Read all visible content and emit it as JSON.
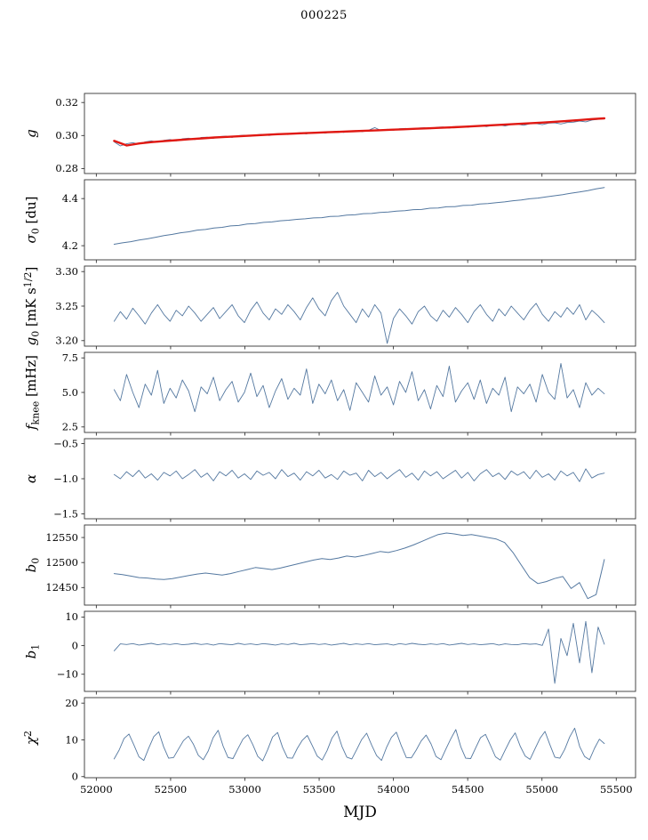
{
  "chart_data": {
    "type": "line",
    "title": "000225",
    "xlabel": "MJD",
    "axis_color": "#333333",
    "xlim": [
      51920,
      55630
    ],
    "x_ticks": [
      52000,
      52500,
      53000,
      53500,
      54000,
      54500,
      55000,
      55500
    ],
    "x_tick_labels": [
      "52000",
      "52500",
      "53000",
      "53500",
      "54000",
      "54500",
      "55000",
      "55500"
    ],
    "panels": [
      {
        "name": "g",
        "ylabel_parts": [
          {
            "t": "g",
            "it": true
          }
        ],
        "ylim": [
          0.277,
          0.3255
        ],
        "yticks": [
          0.28,
          0.3,
          0.32
        ],
        "ytick_labels": [
          "0.28",
          "0.30",
          "0.32"
        ],
        "series": [
          {
            "name": "g-noisy",
            "color": "#5478a0",
            "width": 0.9,
            "x_start": 52120,
            "x_end": 55420,
            "values": [
              0.2962,
              0.2937,
              0.295,
              0.2957,
              0.2948,
              0.2962,
              0.2968,
              0.296,
              0.2971,
              0.2976,
              0.2968,
              0.298,
              0.2984,
              0.2976,
              0.2988,
              0.299,
              0.2983,
              0.2994,
              0.2996,
              0.2989,
              0.2999,
              0.3002,
              0.2995,
              0.3005,
              0.3007,
              0.3,
              0.301,
              0.3012,
              0.3006,
              0.3014,
              0.3017,
              0.301,
              0.3019,
              0.3021,
              0.3014,
              0.3023,
              0.3026,
              0.3019,
              0.3028,
              0.303,
              0.3024,
              0.3032,
              0.3048,
              0.303,
              0.3038,
              0.3032,
              0.3041,
              0.3043,
              0.3037,
              0.3045,
              0.3047,
              0.3041,
              0.305,
              0.3052,
              0.3045,
              0.3054,
              0.3056,
              0.305,
              0.3058,
              0.306,
              0.3054,
              0.3063,
              0.3065,
              0.3058,
              0.3067,
              0.3069,
              0.3062,
              0.3071,
              0.3073,
              0.3066,
              0.3075,
              0.3077,
              0.307,
              0.3079,
              0.3081,
              0.3088,
              0.3083,
              0.3094,
              0.3098,
              0.3102
            ]
          },
          {
            "name": "g-smooth",
            "color": "#e01812",
            "width": 2.4,
            "x_start": 52120,
            "x_end": 55420,
            "values": [
              0.2968,
              0.294,
              0.2952,
              0.296,
              0.2966,
              0.2972,
              0.2978,
              0.2983,
              0.2988,
              0.2992,
              0.2996,
              0.3,
              0.3004,
              0.3008,
              0.3011,
              0.3014,
              0.3017,
              0.302,
              0.3023,
              0.3026,
              0.3029,
              0.3032,
              0.3035,
              0.3038,
              0.3041,
              0.3044,
              0.3047,
              0.305,
              0.3054,
              0.3058,
              0.3062,
              0.3066,
              0.307,
              0.3074,
              0.3078,
              0.3083,
              0.3088,
              0.3094,
              0.31,
              0.3104
            ]
          }
        ]
      },
      {
        "name": "sigma0",
        "ylabel_parts": [
          {
            "t": "σ",
            "it": true
          },
          {
            "t": "0",
            "sub": true
          },
          {
            "t": " [du]"
          }
        ],
        "ylim": [
          4.14,
          4.48
        ],
        "yticks": [
          4.2,
          4.4
        ],
        "ytick_labels": [
          "4.2",
          "4.4"
        ],
        "series": [
          {
            "name": "sigma0",
            "color": "#5478a0",
            "width": 1.0,
            "x_start": 52120,
            "x_end": 55420,
            "values": [
              4.206,
              4.212,
              4.217,
              4.224,
              4.229,
              4.236,
              4.243,
              4.248,
              4.255,
              4.259,
              4.266,
              4.269,
              4.275,
              4.278,
              4.284,
              4.286,
              4.292,
              4.294,
              4.299,
              4.301,
              4.306,
              4.308,
              4.312,
              4.314,
              4.318,
              4.319,
              4.324,
              4.325,
              4.33,
              4.331,
              4.336,
              4.337,
              4.341,
              4.343,
              4.347,
              4.349,
              4.353,
              4.354,
              4.359,
              4.36,
              4.365,
              4.366,
              4.371,
              4.372,
              4.377,
              4.379,
              4.383,
              4.386,
              4.391,
              4.394,
              4.399,
              4.402,
              4.407,
              4.412,
              4.417,
              4.423,
              4.428,
              4.434,
              4.441,
              4.447
            ]
          }
        ]
      },
      {
        "name": "g0",
        "ylabel_parts": [
          {
            "t": "g",
            "it": true
          },
          {
            "t": "0",
            "sub": true
          },
          {
            "t": " [mK s"
          },
          {
            "t": "1/2",
            "sup": true
          },
          {
            "t": "]"
          }
        ],
        "ylim": [
          3.192,
          3.308
        ],
        "yticks": [
          3.2,
          3.25,
          3.3
        ],
        "ytick_labels": [
          "3.20",
          "3.25",
          "3.30"
        ],
        "series": [
          {
            "name": "g0",
            "color": "#5478a0",
            "width": 0.9,
            "x_start": 52120,
            "x_end": 55420,
            "values": [
              3.228,
              3.242,
              3.231,
              3.247,
              3.236,
              3.224,
              3.24,
              3.252,
              3.238,
              3.228,
              3.244,
              3.236,
              3.25,
              3.24,
              3.228,
              3.238,
              3.248,
              3.232,
              3.242,
              3.252,
              3.236,
              3.226,
              3.244,
              3.256,
              3.24,
              3.23,
              3.246,
              3.238,
              3.252,
              3.242,
              3.23,
              3.248,
              3.262,
              3.246,
              3.236,
              3.258,
              3.27,
              3.25,
              3.238,
              3.226,
              3.246,
              3.234,
              3.252,
              3.24,
              3.196,
              3.232,
              3.246,
              3.236,
              3.224,
              3.242,
              3.25,
              3.236,
              3.228,
              3.244,
              3.234,
              3.248,
              3.238,
              3.226,
              3.242,
              3.252,
              3.238,
              3.228,
              3.246,
              3.236,
              3.25,
              3.24,
              3.23,
              3.244,
              3.254,
              3.238,
              3.228,
              3.242,
              3.234,
              3.248,
              3.238,
              3.252,
              3.23,
              3.244,
              3.236,
              3.226
            ]
          }
        ]
      },
      {
        "name": "fknee",
        "ylabel_parts": [
          {
            "t": "f",
            "it": true
          },
          {
            "t": "knee",
            "sub": true
          },
          {
            "t": " [mHz]"
          }
        ],
        "ylim": [
          2.1,
          7.9
        ],
        "yticks": [
          2.5,
          5.0,
          7.5
        ],
        "ytick_labels": [
          "2.5",
          "5.0",
          "7.5"
        ],
        "series": [
          {
            "name": "fknee",
            "color": "#5478a0",
            "width": 0.9,
            "x_start": 52120,
            "x_end": 55420,
            "values": [
              5.2,
              4.4,
              6.3,
              5.0,
              3.9,
              5.6,
              4.8,
              6.6,
              4.2,
              5.3,
              4.6,
              5.9,
              5.1,
              3.6,
              5.4,
              4.9,
              6.1,
              4.4,
              5.2,
              5.8,
              4.3,
              5.0,
              6.4,
              4.7,
              5.5,
              3.9,
              5.1,
              6.0,
              4.5,
              5.3,
              4.8,
              6.7,
              4.2,
              5.6,
              4.9,
              5.9,
              4.4,
              5.2,
              3.7,
              5.7,
              5.0,
              4.3,
              6.2,
              4.8,
              5.4,
              4.1,
              5.8,
              5.0,
              6.5,
              4.4,
              5.2,
              3.8,
              5.5,
              4.7,
              6.9,
              4.3,
              5.1,
              5.7,
              4.5,
              5.9,
              4.2,
              5.3,
              4.8,
              6.1,
              3.6,
              5.4,
              4.9,
              5.6,
              4.3,
              6.3,
              5.0,
              4.5,
              7.1,
              4.6,
              5.2,
              3.9,
              5.7,
              4.8,
              5.3,
              4.9
            ]
          }
        ]
      },
      {
        "name": "alpha",
        "ylabel_parts": [
          {
            "t": "α",
            "it": true
          }
        ],
        "ylim": [
          -1.57,
          -0.43
        ],
        "yticks": [
          -1.5,
          -1.0,
          -0.5
        ],
        "ytick_labels": [
          "−1.5",
          "−1.0",
          "−0.5"
        ],
        "series": [
          {
            "name": "alpha",
            "color": "#5478a0",
            "width": 0.9,
            "x_start": 52120,
            "x_end": 55420,
            "values": [
              -0.94,
              -1.0,
              -0.9,
              -0.97,
              -0.88,
              -0.99,
              -0.93,
              -1.02,
              -0.91,
              -0.96,
              -0.89,
              -1.0,
              -0.94,
              -0.87,
              -0.98,
              -0.92,
              -1.03,
              -0.9,
              -0.96,
              -0.88,
              -0.99,
              -0.93,
              -1.01,
              -0.89,
              -0.95,
              -0.91,
              -1.0,
              -0.87,
              -0.97,
              -0.92,
              -1.02,
              -0.9,
              -0.96,
              -0.88,
              -0.99,
              -0.94,
              -1.01,
              -0.89,
              -0.95,
              -0.92,
              -1.03,
              -0.88,
              -0.97,
              -0.91,
              -1.0,
              -0.93,
              -0.87,
              -0.98,
              -0.92,
              -1.02,
              -0.89,
              -0.96,
              -0.9,
              -1.0,
              -0.94,
              -0.88,
              -0.99,
              -0.91,
              -1.03,
              -0.93,
              -0.87,
              -0.97,
              -0.92,
              -1.01,
              -0.89,
              -0.95,
              -0.9,
              -1.0,
              -0.88,
              -0.98,
              -0.93,
              -1.02,
              -0.89,
              -0.96,
              -0.91,
              -1.04,
              -0.86,
              -0.99,
              -0.94,
              -0.92
            ]
          }
        ]
      },
      {
        "name": "b0",
        "ylabel_parts": [
          {
            "t": "b",
            "it": true
          },
          {
            "t": "0",
            "sub": true
          }
        ],
        "ylim": [
          12415,
          12575
        ],
        "yticks": [
          12450,
          12500,
          12550
        ],
        "ytick_labels": [
          "12450",
          "12500",
          "12550"
        ],
        "series": [
          {
            "name": "b0",
            "color": "#5478a0",
            "width": 1.0,
            "x_start": 52120,
            "x_end": 55420,
            "values": [
              12478,
              12476,
              12473,
              12470,
              12469,
              12467,
              12466,
              12468,
              12471,
              12474,
              12477,
              12479,
              12477,
              12475,
              12478,
              12482,
              12486,
              12490,
              12488,
              12486,
              12489,
              12493,
              12497,
              12501,
              12505,
              12508,
              12506,
              12509,
              12513,
              12511,
              12514,
              12518,
              12522,
              12520,
              12524,
              12529,
              12535,
              12542,
              12549,
              12556,
              12559,
              12557,
              12554,
              12556,
              12553,
              12550,
              12547,
              12540,
              12520,
              12495,
              12470,
              12458,
              12462,
              12468,
              12472,
              12448,
              12460,
              12428,
              12436,
              12506
            ]
          }
        ]
      },
      {
        "name": "b1",
        "ylabel_parts": [
          {
            "t": "b",
            "it": true
          },
          {
            "t": "1",
            "sub": true
          }
        ],
        "ylim": [
          -16,
          12
        ],
        "yticks": [
          -10,
          0,
          10
        ],
        "ytick_labels": [
          "−10",
          "0",
          "10"
        ],
        "series": [
          {
            "name": "b1",
            "color": "#5478a0",
            "width": 0.9,
            "x_start": 52120,
            "x_end": 55420,
            "values": [
              -1.8,
              0.6,
              0.4,
              0.7,
              0.2,
              0.5,
              0.8,
              0.3,
              0.6,
              0.4,
              0.7,
              0.3,
              0.5,
              0.8,
              0.4,
              0.6,
              0.2,
              0.7,
              0.5,
              0.3,
              0.8,
              0.4,
              0.6,
              0.3,
              0.7,
              0.5,
              0.2,
              0.6,
              0.4,
              0.8,
              0.3,
              0.5,
              0.7,
              0.4,
              0.6,
              0.2,
              0.5,
              0.8,
              0.3,
              0.6,
              0.4,
              0.7,
              0.3,
              0.5,
              0.6,
              0.2,
              0.7,
              0.4,
              0.8,
              0.5,
              0.3,
              0.6,
              0.4,
              0.7,
              0.2,
              0.5,
              0.8,
              0.4,
              0.6,
              0.3,
              0.5,
              0.7,
              0.2,
              0.6,
              0.4,
              0.3,
              0.7,
              0.5,
              0.6,
              0.1,
              5.8,
              -13.2,
              2.5,
              -3.5,
              7.8,
              -6.0,
              8.5,
              -9.5,
              6.5,
              0.5
            ]
          }
        ]
      },
      {
        "name": "chi2",
        "ylabel_parts": [
          {
            "t": "χ",
            "it": true
          },
          {
            "t": "2",
            "sup": true
          }
        ],
        "ylim": [
          -0.3,
          21.5
        ],
        "yticks": [
          0,
          10,
          20
        ],
        "ytick_labels": [
          "0",
          "10",
          "20"
        ],
        "series": [
          {
            "name": "chi2",
            "color": "#5478a0",
            "width": 0.9,
            "x_start": 52120,
            "x_end": 55420,
            "values": [
              4.8,
              7.2,
              10.4,
              11.6,
              8.6,
              5.4,
              4.4,
              7.8,
              10.9,
              12.2,
              8.1,
              5.0,
              5.2,
              7.5,
              9.8,
              11.0,
              8.8,
              5.8,
              4.6,
              7.0,
              10.6,
              12.6,
              8.3,
              5.2,
              4.9,
              7.6,
              10.2,
              11.4,
              8.7,
              5.5,
              4.3,
              7.3,
              10.8,
              12.0,
              8.0,
              5.1,
              5.0,
              7.7,
              9.9,
              11.2,
              8.5,
              5.6,
              4.5,
              7.1,
              10.5,
              12.4,
              8.2,
              5.3,
              4.8,
              7.4,
              10.1,
              11.8,
              8.6,
              5.7,
              4.4,
              7.9,
              10.7,
              12.1,
              8.4,
              5.2,
              5.1,
              7.2,
              9.7,
              11.3,
              8.9,
              5.5,
              4.6,
              7.5,
              10.3,
              12.8,
              8.1,
              5.0,
              4.9,
              7.8,
              10.6,
              11.5,
              8.5,
              5.4,
              4.5,
              7.3,
              10.0,
              11.9,
              8.3,
              5.6,
              4.7,
              7.6,
              10.4,
              12.3,
              8.7,
              5.3,
              5.0,
              7.4,
              10.8,
              13.2,
              8.2,
              5.5,
              4.6,
              7.7,
              10.2,
              9.0
            ]
          }
        ]
      }
    ]
  }
}
